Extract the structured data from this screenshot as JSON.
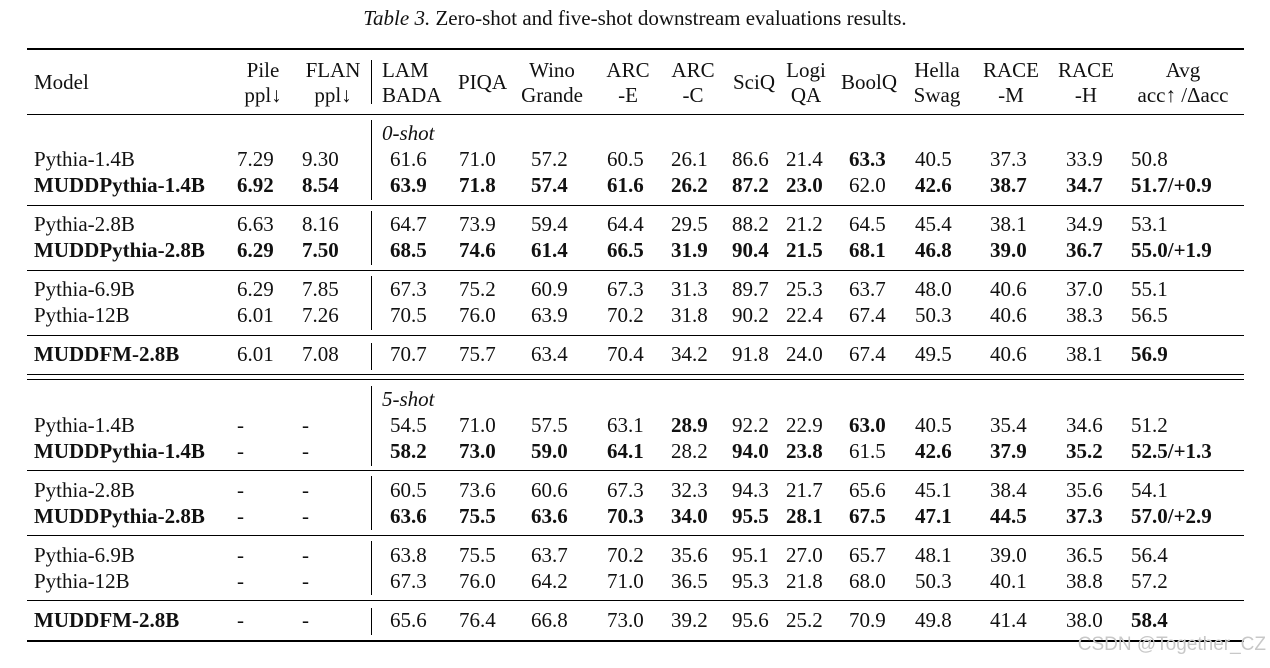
{
  "caption": {
    "label": "Table 3.",
    "text": " Zero-shot and five-shot downstream evaluations results."
  },
  "header": [
    [
      "Model"
    ],
    [
      "Pile",
      "ppl↓"
    ],
    [
      "FLAN",
      "ppl↓"
    ],
    [
      "LAM",
      "BADA"
    ],
    [
      "PIQA"
    ],
    [
      "Wino",
      "Grande"
    ],
    [
      "ARC",
      "-E"
    ],
    [
      "ARC",
      "-C"
    ],
    [
      "SciQ"
    ],
    [
      "Logi",
      "QA"
    ],
    [
      "BoolQ"
    ],
    [
      "Hella",
      "Swag"
    ],
    [
      "RACE",
      "-M"
    ],
    [
      "RACE",
      "-H"
    ],
    [
      "Avg",
      "acc↑ /Δacc"
    ]
  ],
  "sections": [
    {
      "label": "0-shot",
      "groups": [
        [
          {
            "model": "Pythia-1.4B",
            "bold_model": false,
            "values": [
              "7.29",
              "9.30",
              "61.6",
              "71.0",
              "57.2",
              "60.5",
              "26.1",
              "86.6",
              "21.4",
              "63.3",
              "40.5",
              "37.3",
              "33.9",
              "50.8"
            ],
            "bold": [
              9
            ]
          },
          {
            "model": "MUDDPythia-1.4B",
            "bold_model": true,
            "values": [
              "6.92",
              "8.54",
              "63.9",
              "71.8",
              "57.4",
              "61.6",
              "26.2",
              "87.2",
              "23.0",
              "62.0",
              "42.6",
              "38.7",
              "34.7",
              "51.7/+0.9"
            ],
            "bold": [
              0,
              1,
              2,
              3,
              4,
              5,
              6,
              7,
              8,
              10,
              11,
              12,
              13
            ]
          }
        ],
        [
          {
            "model": "Pythia-2.8B",
            "bold_model": false,
            "values": [
              "6.63",
              "8.16",
              "64.7",
              "73.9",
              "59.4",
              "64.4",
              "29.5",
              "88.2",
              "21.2",
              "64.5",
              "45.4",
              "38.1",
              "34.9",
              "53.1"
            ],
            "bold": []
          },
          {
            "model": "MUDDPythia-2.8B",
            "bold_model": true,
            "values": [
              "6.29",
              "7.50",
              "68.5",
              "74.6",
              "61.4",
              "66.5",
              "31.9",
              "90.4",
              "21.5",
              "68.1",
              "46.8",
              "39.0",
              "36.7",
              "55.0/+1.9"
            ],
            "bold": [
              0,
              1,
              2,
              3,
              4,
              5,
              6,
              7,
              8,
              9,
              10,
              11,
              12,
              13
            ]
          }
        ],
        [
          {
            "model": "Pythia-6.9B",
            "bold_model": false,
            "values": [
              "6.29",
              "7.85",
              "67.3",
              "75.2",
              "60.9",
              "67.3",
              "31.3",
              "89.7",
              "25.3",
              "63.7",
              "48.0",
              "40.6",
              "37.0",
              "55.1"
            ],
            "bold": []
          },
          {
            "model": "Pythia-12B",
            "bold_model": false,
            "values": [
              "6.01",
              "7.26",
              "70.5",
              "76.0",
              "63.9",
              "70.2",
              "31.8",
              "90.2",
              "22.4",
              "67.4",
              "50.3",
              "40.6",
              "38.3",
              "56.5"
            ],
            "bold": []
          }
        ],
        [
          {
            "model": "MUDDFM-2.8B",
            "bold_model": true,
            "values": [
              "6.01",
              "7.08",
              "70.7",
              "75.7",
              "63.4",
              "70.4",
              "34.2",
              "91.8",
              "24.0",
              "67.4",
              "49.5",
              "40.6",
              "38.1",
              "56.9"
            ],
            "bold": [
              13
            ]
          }
        ]
      ]
    },
    {
      "label": "5-shot",
      "groups": [
        [
          {
            "model": "Pythia-1.4B",
            "bold_model": false,
            "values": [
              "-",
              "-",
              "54.5",
              "71.0",
              "57.5",
              "63.1",
              "28.9",
              "92.2",
              "22.9",
              "63.0",
              "40.5",
              "35.4",
              "34.6",
              "51.2"
            ],
            "bold": [
              6,
              9
            ]
          },
          {
            "model": "MUDDPythia-1.4B",
            "bold_model": true,
            "values": [
              "-",
              "-",
              "58.2",
              "73.0",
              "59.0",
              "64.1",
              "28.2",
              "94.0",
              "23.8",
              "61.5",
              "42.6",
              "37.9",
              "35.2",
              "52.5/+1.3"
            ],
            "bold": [
              2,
              3,
              4,
              5,
              7,
              8,
              10,
              11,
              12,
              13
            ]
          }
        ],
        [
          {
            "model": "Pythia-2.8B",
            "bold_model": false,
            "values": [
              "-",
              "-",
              "60.5",
              "73.6",
              "60.6",
              "67.3",
              "32.3",
              "94.3",
              "21.7",
              "65.6",
              "45.1",
              "38.4",
              "35.6",
              "54.1"
            ],
            "bold": []
          },
          {
            "model": "MUDDPythia-2.8B",
            "bold_model": true,
            "values": [
              "-",
              "-",
              "63.6",
              "75.5",
              "63.6",
              "70.3",
              "34.0",
              "95.5",
              "28.1",
              "67.5",
              "47.1",
              "44.5",
              "37.3",
              "57.0/+2.9"
            ],
            "bold": [
              2,
              3,
              4,
              5,
              6,
              7,
              8,
              9,
              10,
              11,
              12,
              13
            ]
          }
        ],
        [
          {
            "model": "Pythia-6.9B",
            "bold_model": false,
            "values": [
              "-",
              "-",
              "63.8",
              "75.5",
              "63.7",
              "70.2",
              "35.6",
              "95.1",
              "27.0",
              "65.7",
              "48.1",
              "39.0",
              "36.5",
              "56.4"
            ],
            "bold": []
          },
          {
            "model": "Pythia-12B",
            "bold_model": false,
            "values": [
              "-",
              "-",
              "67.3",
              "76.0",
              "64.2",
              "71.0",
              "36.5",
              "95.3",
              "21.8",
              "68.0",
              "50.3",
              "40.1",
              "38.8",
              "57.2"
            ],
            "bold": []
          }
        ],
        [
          {
            "model": "MUDDFM-2.8B",
            "bold_model": true,
            "values": [
              "-",
              "-",
              "65.6",
              "76.4",
              "66.8",
              "73.0",
              "39.2",
              "95.6",
              "25.2",
              "70.9",
              "49.8",
              "41.4",
              "38.0",
              "58.4"
            ],
            "bold": [
              13
            ]
          }
        ]
      ]
    }
  ],
  "watermark": "CSDN @Together_CZ"
}
